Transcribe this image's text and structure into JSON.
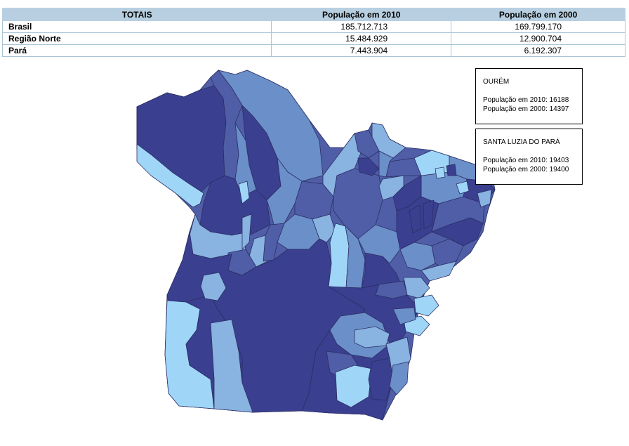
{
  "table": {
    "headers": [
      "TOTAIS",
      "População em 2010",
      "População em 2000"
    ],
    "rows": [
      {
        "name": "Brasil",
        "pop2010": "185.712.713",
        "pop2000": "169.799.170"
      },
      {
        "name": "Região Norte",
        "pop2010": "15.484.929",
        "pop2000": "12.900.704"
      },
      {
        "name": "Pará",
        "pop2010": "7.443.904",
        "pop2000": "6.192.307"
      }
    ]
  },
  "tooltips": [
    {
      "name": "OURÉM",
      "line2010": "População em 2010: 16188",
      "line2000": "População em 2000: 14397"
    },
    {
      "name": "SANTA LUZIA DO PARÁ",
      "line2010": "População em 2010: 19403",
      "line2000": "População em 2000: 19400"
    }
  ],
  "map": {
    "region": "Pará",
    "colors": {
      "dark": "#3a3f8f",
      "medium": "#4f5ea6",
      "steel": "#6b8fc8",
      "light": "#89b3e0",
      "pale": "#9fd6f8",
      "border": "#2b2f66"
    }
  }
}
